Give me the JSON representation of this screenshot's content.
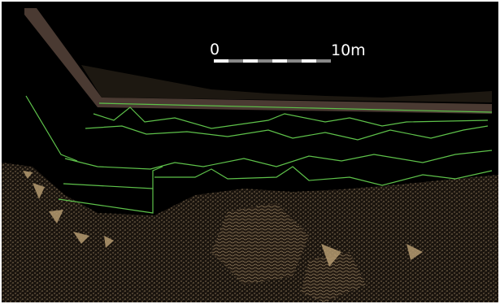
{
  "scale_bar": {
    "start_label": "0",
    "end_label": "10m"
  }
}
